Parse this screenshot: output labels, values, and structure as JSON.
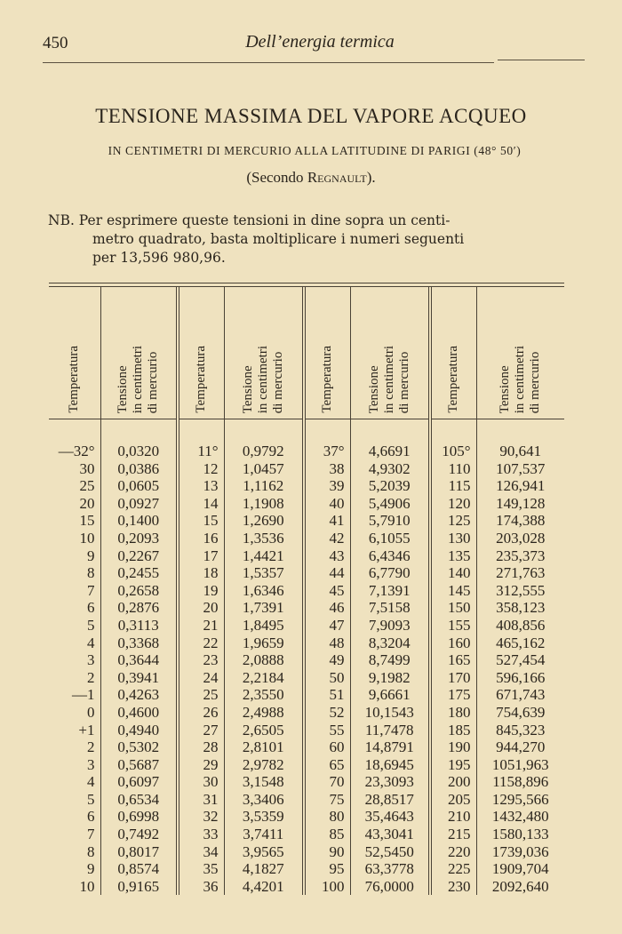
{
  "header": {
    "page_number": "450",
    "running_title": "Dell’energia termica"
  },
  "title": "TENSIONE MASSIMA DEL VAPORE ACQUEO",
  "subtitle": "IN CENTIMETRI DI MERCURIO ALLA LATITUDINE DI PARIGI (48° 50′)",
  "source": {
    "prefix": "(Secondo ",
    "name": "Regnault",
    "suffix": ")."
  },
  "note": {
    "line1": "NB. Per esprimere queste tensioni in dine sopra un centi-",
    "line2": "metro quadrato, basta moltiplicare i numeri seguenti",
    "line3": "per 13,596  980,96."
  },
  "table": {
    "col_headers": {
      "temp": "Temperatura",
      "tension": "Tensione\nin centimetri\ndi mercurio"
    },
    "groups": [
      {
        "rows": [
          [
            "—32°",
            "0,0320"
          ],
          [
            "30",
            "0,0386"
          ],
          [
            "25",
            "0,0605"
          ],
          [
            "20",
            "0,0927"
          ],
          [
            "15",
            "0,1400"
          ],
          [
            "10",
            "0,2093"
          ],
          [
            "9",
            "0,2267"
          ],
          [
            "8",
            "0,2455"
          ],
          [
            "7",
            "0,2658"
          ],
          [
            "6",
            "0,2876"
          ],
          [
            "5",
            "0,3113"
          ],
          [
            "4",
            "0,3368"
          ],
          [
            "3",
            "0,3644"
          ],
          [
            "2",
            "0,3941"
          ],
          [
            "—1",
            "0,4263"
          ],
          [
            "0",
            "0,4600"
          ],
          [
            "+1",
            "0,4940"
          ],
          [
            "2",
            "0,5302"
          ],
          [
            "3",
            "0,5687"
          ],
          [
            "4",
            "0,6097"
          ],
          [
            "5",
            "0,6534"
          ],
          [
            "6",
            "0,6998"
          ],
          [
            "7",
            "0,7492"
          ],
          [
            "8",
            "0,8017"
          ],
          [
            "9",
            "0,8574"
          ],
          [
            "10",
            "0,9165"
          ]
        ]
      },
      {
        "rows": [
          [
            "11°",
            "0,9792"
          ],
          [
            "12",
            "1,0457"
          ],
          [
            "13",
            "1,1162"
          ],
          [
            "14",
            "1,1908"
          ],
          [
            "15",
            "1,2690"
          ],
          [
            "16",
            "1,3536"
          ],
          [
            "17",
            "1,4421"
          ],
          [
            "18",
            "1,5357"
          ],
          [
            "19",
            "1,6346"
          ],
          [
            "20",
            "1,7391"
          ],
          [
            "21",
            "1,8495"
          ],
          [
            "22",
            "1,9659"
          ],
          [
            "23",
            "2,0888"
          ],
          [
            "24",
            "2,2184"
          ],
          [
            "25",
            "2,3550"
          ],
          [
            "26",
            "2,4988"
          ],
          [
            "27",
            "2,6505"
          ],
          [
            "28",
            "2,8101"
          ],
          [
            "29",
            "2,9782"
          ],
          [
            "30",
            "3,1548"
          ],
          [
            "31",
            "3,3406"
          ],
          [
            "32",
            "3,5359"
          ],
          [
            "33",
            "3,7411"
          ],
          [
            "34",
            "3,9565"
          ],
          [
            "35",
            "4,1827"
          ],
          [
            "36",
            "4,4201"
          ]
        ]
      },
      {
        "rows": [
          [
            "37°",
            "4,6691"
          ],
          [
            "38",
            "4,9302"
          ],
          [
            "39",
            "5,2039"
          ],
          [
            "40",
            "5,4906"
          ],
          [
            "41",
            "5,7910"
          ],
          [
            "42",
            "6,1055"
          ],
          [
            "43",
            "6,4346"
          ],
          [
            "44",
            "6,7790"
          ],
          [
            "45",
            "7,1391"
          ],
          [
            "46",
            "7,5158"
          ],
          [
            "47",
            "7,9093"
          ],
          [
            "48",
            "8,3204"
          ],
          [
            "49",
            "8,7499"
          ],
          [
            "50",
            "9,1982"
          ],
          [
            "51",
            "9,6661"
          ],
          [
            "52",
            "10,1543"
          ],
          [
            "55",
            "11,7478"
          ],
          [
            "60",
            "14,8791"
          ],
          [
            "65",
            "18,6945"
          ],
          [
            "70",
            "23,3093"
          ],
          [
            "75",
            "28,8517"
          ],
          [
            "80",
            "35,4643"
          ],
          [
            "85",
            "43,3041"
          ],
          [
            "90",
            "52,5450"
          ],
          [
            "95",
            "63,3778"
          ],
          [
            "100",
            "76,0000"
          ]
        ]
      },
      {
        "rows": [
          [
            "105°",
            "90,641"
          ],
          [
            "110",
            "107,537"
          ],
          [
            "115",
            "126,941"
          ],
          [
            "120",
            "149,128"
          ],
          [
            "125",
            "174,388"
          ],
          [
            "130",
            "203,028"
          ],
          [
            "135",
            "235,373"
          ],
          [
            "140",
            "271,763"
          ],
          [
            "145",
            "312,555"
          ],
          [
            "150",
            "358,123"
          ],
          [
            "155",
            "408,856"
          ],
          [
            "160",
            "465,162"
          ],
          [
            "165",
            "527,454"
          ],
          [
            "170",
            "596,166"
          ],
          [
            "175",
            "671,743"
          ],
          [
            "180",
            "754,639"
          ],
          [
            "185",
            "845,323"
          ],
          [
            "190",
            "944,270"
          ],
          [
            "195",
            "1051,963"
          ],
          [
            "200",
            "1158,896"
          ],
          [
            "205",
            "1295,566"
          ],
          [
            "210",
            "1432,480"
          ],
          [
            "215",
            "1580,133"
          ],
          [
            "220",
            "1739,036"
          ],
          [
            "225",
            "1909,704"
          ],
          [
            "230",
            "2092,640"
          ]
        ]
      }
    ]
  }
}
